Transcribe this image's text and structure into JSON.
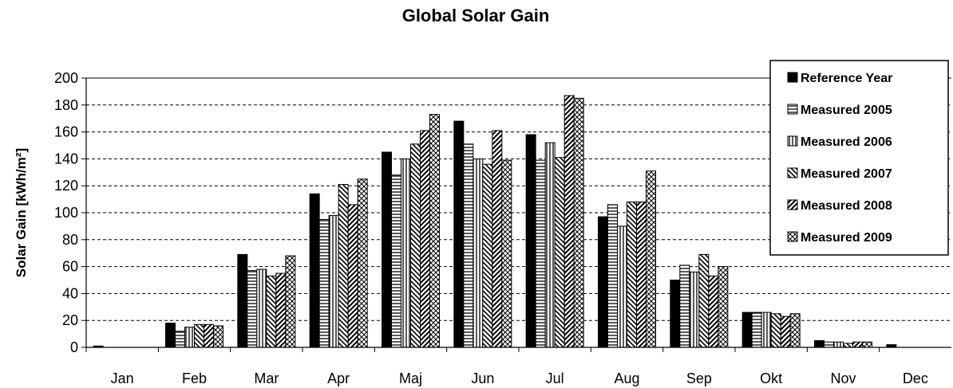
{
  "chart_data": {
    "type": "bar",
    "title": "Global Solar Gain",
    "xlabel": "",
    "ylabel": "Solar Gain [kWh/m²]",
    "ylim": [
      0,
      200
    ],
    "yticks": [
      0,
      20,
      40,
      60,
      80,
      100,
      120,
      140,
      160,
      180,
      200
    ],
    "grid": true,
    "legend_position": "top-right",
    "categories": [
      "Jan",
      "Feb",
      "Mar",
      "Apr",
      "Maj",
      "Jun",
      "Jul",
      "Aug",
      "Sep",
      "Okt",
      "Nov",
      "Dec"
    ],
    "series": [
      {
        "name": "Reference Year",
        "pattern": "solid",
        "values": [
          1,
          18,
          69,
          114,
          145,
          168,
          158,
          97,
          50,
          26,
          5,
          2
        ]
      },
      {
        "name": "Measured 2005",
        "pattern": "hlines",
        "values": [
          0,
          12,
          57,
          95,
          128,
          151,
          139,
          106,
          61,
          26,
          4,
          0
        ]
      },
      {
        "name": "Measured 2006",
        "pattern": "vlines",
        "values": [
          0,
          15,
          58,
          98,
          140,
          140,
          152,
          90,
          56,
          26,
          4,
          0
        ]
      },
      {
        "name": "Measured 2007",
        "pattern": "backdiag",
        "values": [
          0,
          17,
          53,
          121,
          151,
          136,
          141,
          108,
          69,
          25,
          3,
          0
        ]
      },
      {
        "name": "Measured 2008",
        "pattern": "fwddiag",
        "values": [
          0,
          17,
          55,
          106,
          161,
          161,
          187,
          108,
          53,
          23,
          4,
          0
        ]
      },
      {
        "name": "Measured 2009",
        "pattern": "crosshatch",
        "values": [
          0,
          16,
          68,
          125,
          173,
          139,
          185,
          131,
          60,
          25,
          4,
          0
        ]
      }
    ]
  }
}
